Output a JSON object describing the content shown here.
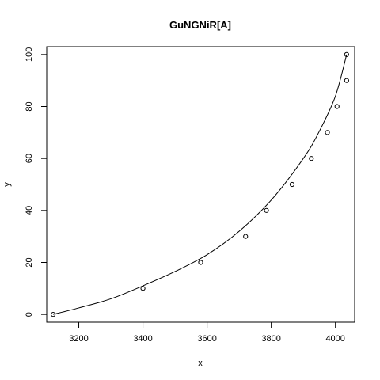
{
  "chart_data": {
    "type": "scatter",
    "title": "GuNGNiR[A]",
    "xlabel": "x",
    "ylabel": "y",
    "xlim": [
      3100,
      4060
    ],
    "ylim": [
      -3,
      103
    ],
    "x_ticks": [
      3200,
      3400,
      3600,
      3800,
      4000
    ],
    "y_ticks": [
      0,
      20,
      40,
      60,
      80,
      100
    ],
    "x_tick_labels": [
      "3200",
      "3400",
      "3600",
      "3800",
      "4000"
    ],
    "y_tick_labels": [
      "0",
      "20",
      "40",
      "60",
      "80",
      "100"
    ],
    "grid": false,
    "legend": false,
    "series": [
      {
        "type": "scatter",
        "marker": "open-circle",
        "points": [
          {
            "x": 3120,
            "y": 0
          },
          {
            "x": 3400,
            "y": 10
          },
          {
            "x": 3580,
            "y": 20
          },
          {
            "x": 3720,
            "y": 30
          },
          {
            "x": 3785,
            "y": 40
          },
          {
            "x": 3865,
            "y": 50
          },
          {
            "x": 3925,
            "y": 60
          },
          {
            "x": 3975,
            "y": 70
          },
          {
            "x": 4005,
            "y": 80
          },
          {
            "x": 4035,
            "y": 90
          },
          {
            "x": 4035,
            "y": 100
          }
        ]
      },
      {
        "type": "line",
        "points": [
          {
            "x": 3120,
            "y": 0
          },
          {
            "x": 3200,
            "y": 2.5
          },
          {
            "x": 3300,
            "y": 6
          },
          {
            "x": 3400,
            "y": 11
          },
          {
            "x": 3500,
            "y": 16.5
          },
          {
            "x": 3600,
            "y": 23
          },
          {
            "x": 3700,
            "y": 32
          },
          {
            "x": 3800,
            "y": 44
          },
          {
            "x": 3900,
            "y": 60
          },
          {
            "x": 3950,
            "y": 70.5
          },
          {
            "x": 4000,
            "y": 84
          },
          {
            "x": 4035,
            "y": 100
          }
        ]
      }
    ]
  }
}
